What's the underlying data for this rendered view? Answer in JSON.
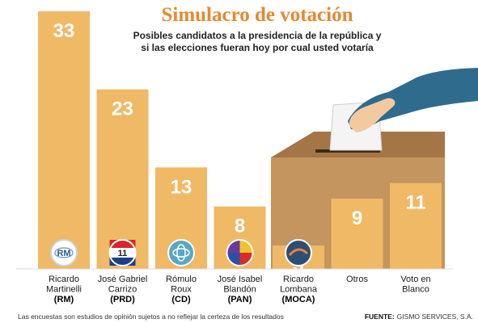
{
  "chart_data": {
    "type": "bar",
    "title": "Simulacro de votación",
    "subtitle": [
      "Posibles candidatos a la  presidencia de la república y",
      "si las elecciones fueran hoy por cual usted votaría"
    ],
    "categories": [
      {
        "name": "Ricardo Martinelli",
        "lines": [
          "Ricardo",
          "Martinelli"
        ],
        "party": "(RM)",
        "logo_text": "RM",
        "logo": "rm-logo"
      },
      {
        "name": "José Gabriel Carrizo",
        "lines": [
          "José Gabriel",
          "Carrizo"
        ],
        "party": "(PRD)",
        "logo_text": "11",
        "logo": "prd-logo"
      },
      {
        "name": "Rómulo Roux",
        "lines": [
          "Rómulo",
          "Roux"
        ],
        "party": "(CD)",
        "logo_text": "",
        "logo": "cd-logo"
      },
      {
        "name": "José Isabel Blandón",
        "lines": [
          "José Isabel",
          "Blandón"
        ],
        "party": "(PAN)",
        "logo_text": "",
        "logo": "pan-logo"
      },
      {
        "name": "Ricardo Lombana",
        "lines": [
          "Ricardo",
          "Lombana"
        ],
        "party": "(MOCA)",
        "logo_text": "",
        "logo": "moca-logo"
      },
      {
        "name": "Otros",
        "lines": [
          "Otros"
        ],
        "party": "",
        "logo_text": "",
        "logo": ""
      },
      {
        "name": "Voto en Blanco",
        "lines": [
          "Voto en",
          "Blanco"
        ],
        "party": "",
        "logo_text": "",
        "logo": ""
      }
    ],
    "values": [
      33,
      23,
      13,
      8,
      3,
      9,
      11
    ],
    "ylim": [
      0,
      33
    ],
    "xlabel": "",
    "ylabel": "",
    "grid": false,
    "colors": {
      "bar": "#f0b966",
      "title": "#e6892f",
      "ballot_box": "#b98a58",
      "hand": "#2f6b8c"
    }
  },
  "footer": {
    "note": "Las encuestas son estudios de opinión sujetos a no reflejar la certeza de los resultados",
    "source_label": "FUENTE:",
    "source_value": "GISMO SERVICES, S.A."
  }
}
